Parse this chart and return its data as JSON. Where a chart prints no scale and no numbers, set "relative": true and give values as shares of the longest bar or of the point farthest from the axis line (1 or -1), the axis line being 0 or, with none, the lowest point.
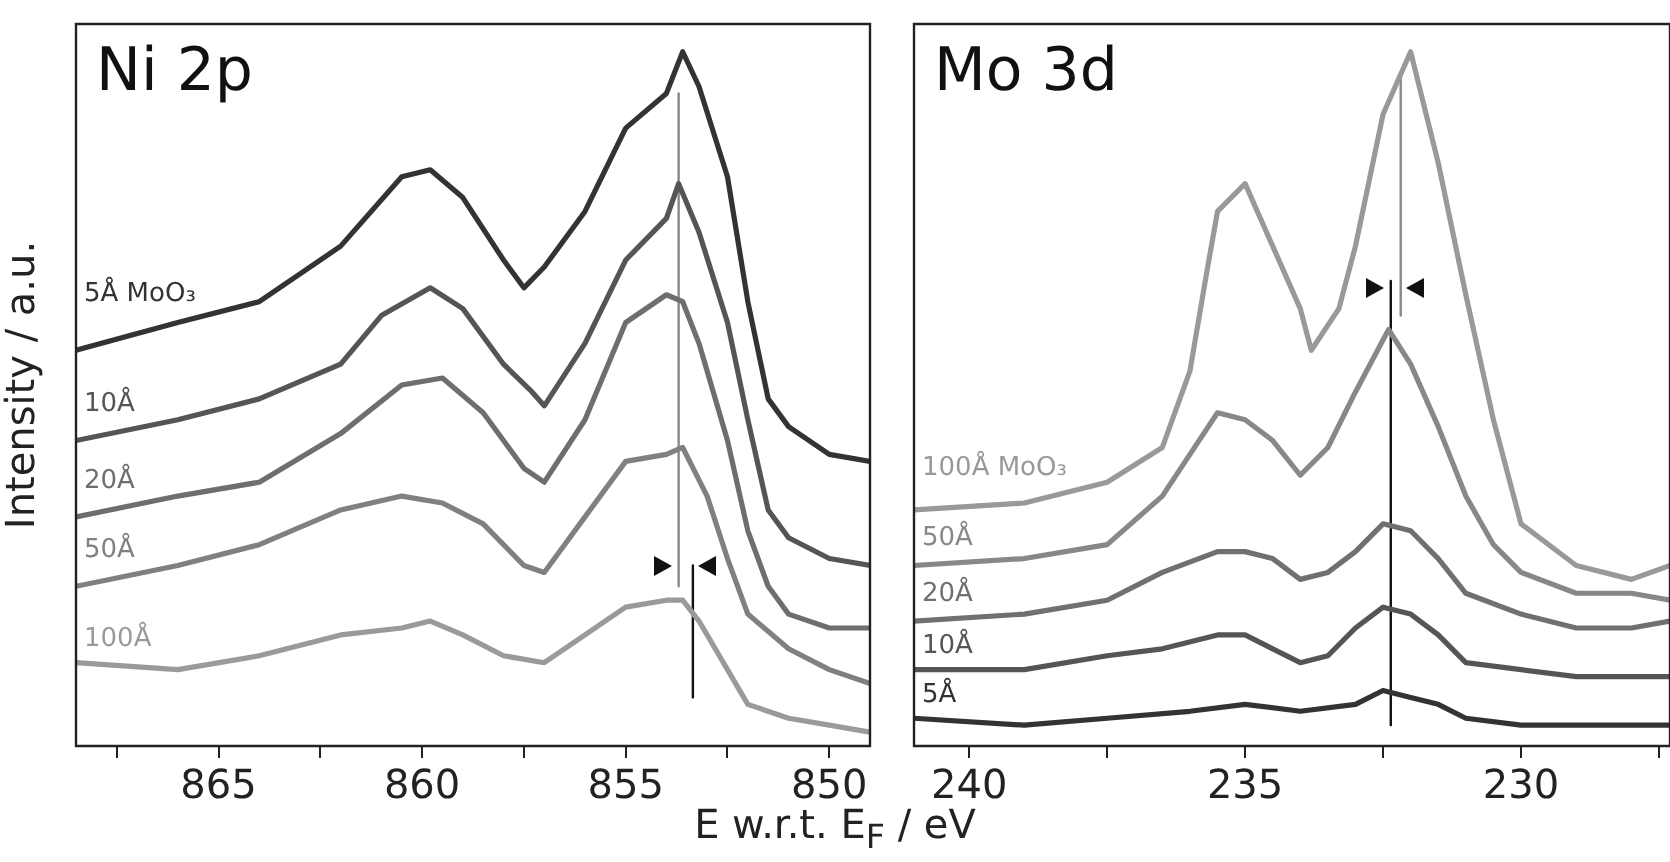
{
  "chart_data": [
    {
      "type": "line",
      "title": "Ni 2p",
      "ylabel": "Intensity / a.u.",
      "xlabel": "E w.r.t. E$_{F}$ / eV",
      "relative": true,
      "xlim": [
        868.5,
        849
      ],
      "xticks": [
        {
          "value": 867.5,
          "label": null
        },
        865,
        {
          "value": 862.5,
          "label": null
        },
        860,
        {
          "value": 857.5,
          "label": null
        },
        855,
        {
          "value": 852.5,
          "label": null
        },
        850
      ],
      "grid": false,
      "legend": false,
      "marker": "none",
      "series": [
        {
          "name": "5Å MoO₃",
          "color": "#333333",
          "x": [
            868.5,
            866,
            864,
            862,
            860.5,
            859.8,
            859,
            858,
            857.5,
            857,
            856,
            855,
            854,
            853.6,
            853.2,
            852.5,
            852,
            851.5,
            851,
            850,
            849
          ],
          "values": [
            0.57,
            0.61,
            0.64,
            0.72,
            0.82,
            0.83,
            0.79,
            0.7,
            0.66,
            0.69,
            0.77,
            0.89,
            0.94,
            1.0,
            0.95,
            0.82,
            0.64,
            0.5,
            0.46,
            0.42,
            0.41
          ]
        },
        {
          "name": "10Å",
          "color": "#555555",
          "x": [
            868.5,
            866,
            864,
            862,
            861,
            859.8,
            859,
            858,
            857.3,
            857,
            856,
            855,
            854,
            853.7,
            853.2,
            852.5,
            852,
            851.5,
            851,
            850,
            849
          ],
          "values": [
            0.44,
            0.47,
            0.5,
            0.55,
            0.62,
            0.66,
            0.63,
            0.55,
            0.51,
            0.49,
            0.58,
            0.7,
            0.76,
            0.81,
            0.74,
            0.61,
            0.47,
            0.34,
            0.3,
            0.27,
            0.26
          ]
        },
        {
          "name": "20Å",
          "color": "#6e6e6e",
          "x": [
            868.5,
            866,
            864,
            862,
            860.5,
            859.5,
            858.5,
            857.5,
            857,
            856,
            855,
            854,
            853.6,
            853.2,
            852.5,
            852,
            851.5,
            851,
            850,
            849
          ],
          "values": [
            0.33,
            0.36,
            0.38,
            0.45,
            0.52,
            0.53,
            0.48,
            0.4,
            0.38,
            0.47,
            0.61,
            0.65,
            0.64,
            0.58,
            0.44,
            0.31,
            0.23,
            0.19,
            0.17,
            0.17
          ]
        },
        {
          "name": "50Å",
          "color": "#808080",
          "x": [
            868.5,
            866,
            864,
            862,
            860.5,
            859.5,
            858.5,
            857.5,
            857,
            856,
            855,
            854,
            853.6,
            853,
            852.5,
            852,
            851,
            850,
            849
          ],
          "values": [
            0.23,
            0.26,
            0.29,
            0.34,
            0.36,
            0.35,
            0.32,
            0.26,
            0.25,
            0.33,
            0.41,
            0.42,
            0.43,
            0.36,
            0.27,
            0.19,
            0.14,
            0.11,
            0.09
          ]
        },
        {
          "name": "100Å",
          "color": "#9a9a9a",
          "x": [
            868.5,
            866,
            864,
            862,
            860.5,
            859.8,
            859,
            858,
            857,
            856,
            855,
            854,
            853.6,
            853.2,
            852.5,
            852,
            851,
            850,
            849
          ],
          "values": [
            0.12,
            0.11,
            0.13,
            0.16,
            0.17,
            0.18,
            0.16,
            0.13,
            0.12,
            0.16,
            0.2,
            0.21,
            0.21,
            0.18,
            0.11,
            0.06,
            0.04,
            0.03,
            0.02
          ]
        },
        {
          "color": "#888888",
          "x": [
            853.7,
            853.7
          ],
          "values": [
            0.94,
            0.23
          ]
        },
        {
          "color": "#111111",
          "x": [
            853.35,
            853.35
          ],
          "values": [
            0.26,
            0.07
          ]
        }
      ]
    },
    {
      "type": "line",
      "title": "Mo 3d",
      "relative": true,
      "xlim": [
        241,
        227.3
      ],
      "xticks": [
        240,
        {
          "value": 237.5,
          "label": null
        },
        235,
        {
          "value": 232.5,
          "label": null
        },
        230,
        {
          "value": 227.5,
          "label": null
        }
      ],
      "grid": false,
      "legend": false,
      "marker": "none",
      "series": [
        {
          "name": "100Å MoO₃",
          "color": "#999999",
          "x": [
            241,
            239,
            237.5,
            236.5,
            236,
            235.7,
            235.5,
            235,
            234.5,
            234,
            233.8,
            233.3,
            233,
            232.5,
            232,
            231.5,
            231,
            230.5,
            230,
            229,
            228,
            227.3
          ],
          "values": [
            0.34,
            0.35,
            0.38,
            0.43,
            0.54,
            0.68,
            0.77,
            0.81,
            0.72,
            0.63,
            0.57,
            0.63,
            0.72,
            0.91,
            1.0,
            0.84,
            0.65,
            0.47,
            0.32,
            0.26,
            0.24,
            0.26
          ]
        },
        {
          "name": "50Å",
          "color": "#888888",
          "x": [
            241,
            239,
            237.5,
            236.5,
            236,
            235.5,
            235,
            234.5,
            234,
            233.5,
            233,
            232.4,
            232,
            231.5,
            231,
            230.5,
            230,
            229,
            228,
            227.3
          ],
          "values": [
            0.26,
            0.27,
            0.29,
            0.36,
            0.42,
            0.48,
            0.47,
            0.44,
            0.39,
            0.43,
            0.51,
            0.6,
            0.55,
            0.46,
            0.36,
            0.29,
            0.25,
            0.22,
            0.22,
            0.21
          ]
        },
        {
          "name": "20Å",
          "color": "#707070",
          "x": [
            241,
            239,
            237.5,
            236.5,
            235.5,
            235,
            234.5,
            234,
            233.5,
            233,
            232.5,
            232,
            231.5,
            231,
            230,
            229,
            228,
            227.3
          ],
          "values": [
            0.18,
            0.19,
            0.21,
            0.25,
            0.28,
            0.28,
            0.27,
            0.24,
            0.25,
            0.28,
            0.32,
            0.31,
            0.27,
            0.22,
            0.19,
            0.17,
            0.17,
            0.18
          ]
        },
        {
          "name": "10Å",
          "color": "#555555",
          "x": [
            241,
            239,
            237.5,
            236.5,
            235.5,
            235,
            234.5,
            234,
            233.5,
            233,
            232.5,
            232,
            231.5,
            231,
            230,
            229,
            228,
            227.3
          ],
          "values": [
            0.11,
            0.11,
            0.13,
            0.14,
            0.16,
            0.16,
            0.14,
            0.12,
            0.13,
            0.17,
            0.2,
            0.19,
            0.16,
            0.12,
            0.11,
            0.1,
            0.1,
            0.1
          ]
        },
        {
          "name": "5Å",
          "color": "#333333",
          "x": [
            241,
            239,
            237.5,
            236,
            235,
            234,
            233,
            232.5,
            232,
            231.5,
            231,
            230,
            229,
            228,
            227.3
          ],
          "values": [
            0.04,
            0.03,
            0.04,
            0.05,
            0.06,
            0.05,
            0.06,
            0.08,
            0.07,
            0.06,
            0.04,
            0.03,
            0.03,
            0.03,
            0.03
          ]
        },
        {
          "color": "#888888",
          "x": [
            232.18,
            232.18
          ],
          "values": [
            0.97,
            0.62
          ]
        },
        {
          "color": "#111111",
          "x": [
            232.36,
            232.36
          ],
          "values": [
            0.67,
            0.03
          ]
        }
      ]
    }
  ]
}
